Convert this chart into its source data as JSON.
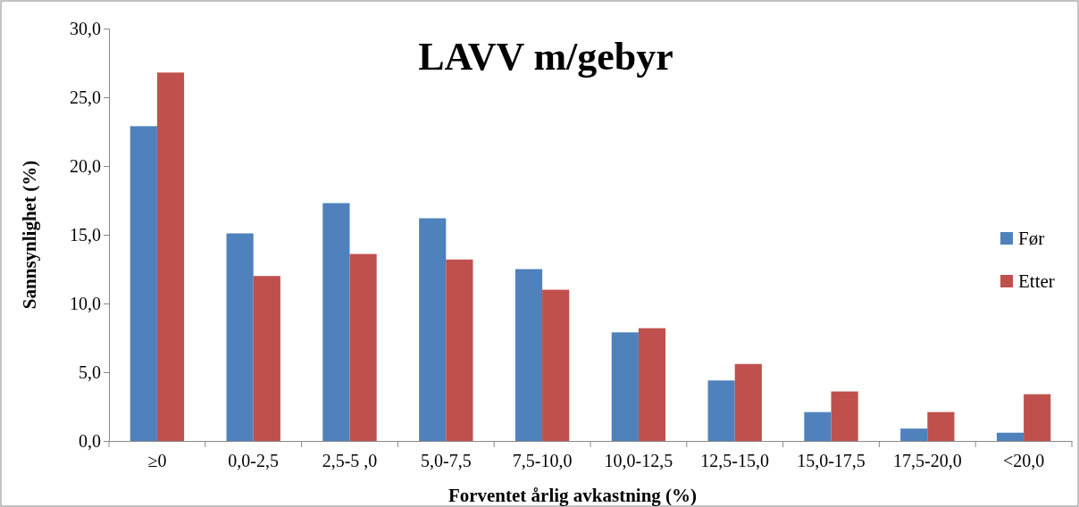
{
  "chart_data": {
    "type": "bar",
    "title": "LAVV m/gebyr",
    "xlabel": "Forventet årlig avkastning (%)",
    "ylabel": "Sannsynlighet (%)",
    "categories": [
      "≥0",
      "0,0-2,5",
      "2,5-5 ,0",
      "5,0-7,5",
      "7,5-10,0",
      "10,0-12,5",
      "12,5-15,0",
      "15,0-17,5",
      "17,5-20,0",
      "<20,0"
    ],
    "series": [
      {
        "name": "Før",
        "color": "#4f81bd",
        "values": [
          22.9,
          15.1,
          17.3,
          16.2,
          12.5,
          7.9,
          4.4,
          2.1,
          0.9,
          0.6
        ]
      },
      {
        "name": "Etter",
        "color": "#c0504d",
        "values": [
          26.8,
          12.0,
          13.6,
          13.2,
          11.0,
          8.2,
          5.6,
          3.6,
          2.1,
          3.4
        ]
      }
    ],
    "ylim": [
      0,
      30
    ],
    "yticks": [
      {
        "value": 0,
        "label": "0,0"
      },
      {
        "value": 5,
        "label": "5,0"
      },
      {
        "value": 10,
        "label": "10,0"
      },
      {
        "value": 15,
        "label": "15,0"
      },
      {
        "value": 20,
        "label": "20,0"
      },
      {
        "value": 25,
        "label": "25,0"
      },
      {
        "value": 30,
        "label": "30,0"
      }
    ],
    "grid": false,
    "legend": "right"
  }
}
